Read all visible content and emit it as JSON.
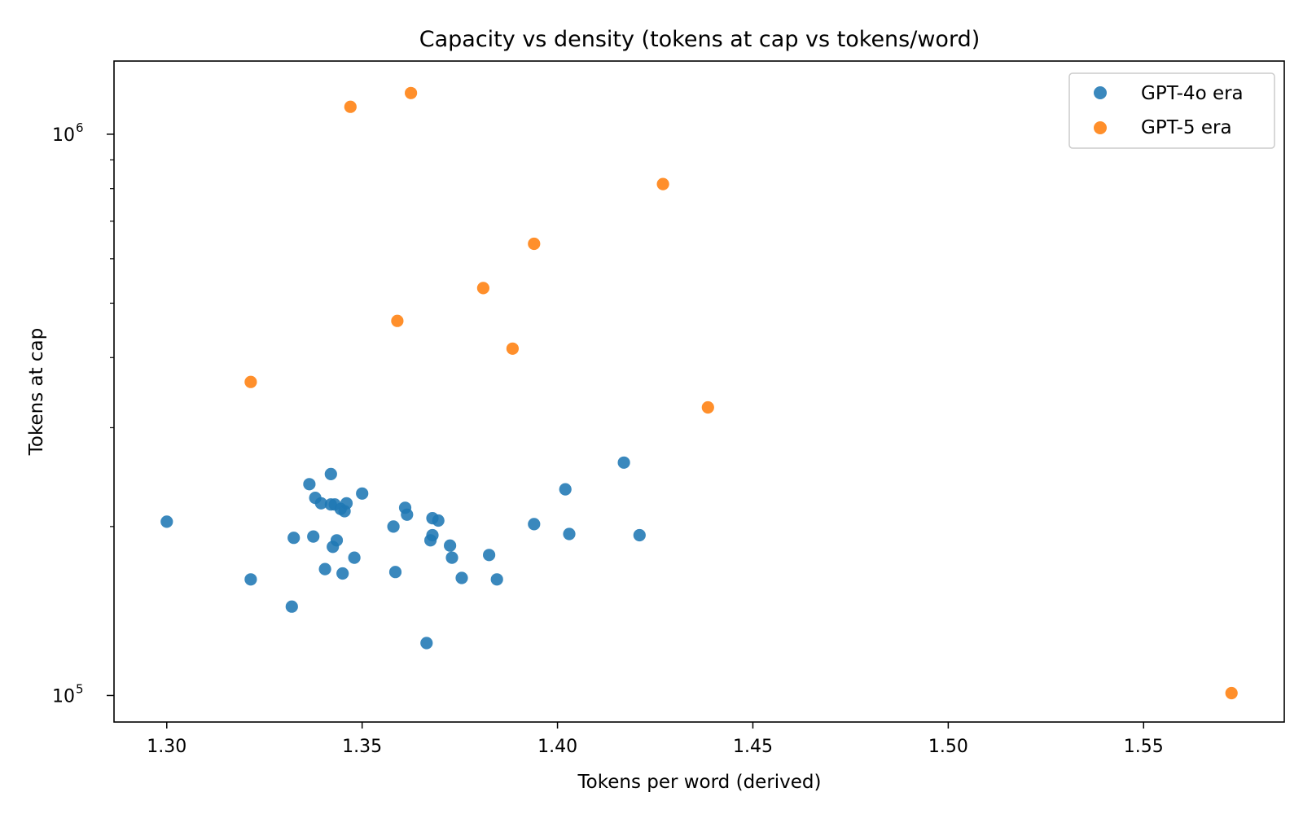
{
  "chart_data": {
    "type": "scatter",
    "title": "Capacity vs density (tokens at cap vs tokens/word)",
    "xlabel": "Tokens per word (derived)",
    "ylabel": "Tokens at cap",
    "xscale": "linear",
    "yscale": "log",
    "xlim": [
      1.2865,
      1.586
    ],
    "ylim": [
      89700,
      1350000
    ],
    "xticks": [
      1.3,
      1.35,
      1.4,
      1.45,
      1.5,
      1.55
    ],
    "xtick_labels": [
      "1.30",
      "1.35",
      "1.40",
      "1.45",
      "1.50",
      "1.55"
    ],
    "yticks_major": [
      {
        "value": 100000,
        "base": "10",
        "exp": "5"
      },
      {
        "value": 1000000,
        "base": "10",
        "exp": "6"
      }
    ],
    "yticks_minor": [
      200000,
      300000,
      400000,
      500000,
      600000,
      700000,
      800000,
      900000
    ],
    "grid": false,
    "legend_position": "upper right",
    "series": [
      {
        "name": "GPT-4o era",
        "color": "#1f77b4",
        "points": [
          {
            "x": 1.3,
            "y": 204000
          },
          {
            "x": 1.3215,
            "y": 161000
          },
          {
            "x": 1.332,
            "y": 144000
          },
          {
            "x": 1.3325,
            "y": 191000
          },
          {
            "x": 1.3365,
            "y": 238000
          },
          {
            "x": 1.3375,
            "y": 192000
          },
          {
            "x": 1.338,
            "y": 225000
          },
          {
            "x": 1.3395,
            "y": 220000
          },
          {
            "x": 1.3405,
            "y": 168000
          },
          {
            "x": 1.342,
            "y": 248000
          },
          {
            "x": 1.342,
            "y": 219000
          },
          {
            "x": 1.3425,
            "y": 184000
          },
          {
            "x": 1.343,
            "y": 219000
          },
          {
            "x": 1.3435,
            "y": 189000
          },
          {
            "x": 1.3445,
            "y": 215000
          },
          {
            "x": 1.345,
            "y": 165000
          },
          {
            "x": 1.3455,
            "y": 213000
          },
          {
            "x": 1.346,
            "y": 220000
          },
          {
            "x": 1.348,
            "y": 176000
          },
          {
            "x": 1.35,
            "y": 229000
          },
          {
            "x": 1.358,
            "y": 200000
          },
          {
            "x": 1.3585,
            "y": 166000
          },
          {
            "x": 1.361,
            "y": 216000
          },
          {
            "x": 1.3615,
            "y": 210000
          },
          {
            "x": 1.3665,
            "y": 124000
          },
          {
            "x": 1.3675,
            "y": 189000
          },
          {
            "x": 1.368,
            "y": 207000
          },
          {
            "x": 1.368,
            "y": 193000
          },
          {
            "x": 1.3695,
            "y": 205000
          },
          {
            "x": 1.3725,
            "y": 185000
          },
          {
            "x": 1.373,
            "y": 176000
          },
          {
            "x": 1.3755,
            "y": 162000
          },
          {
            "x": 1.3825,
            "y": 178000
          },
          {
            "x": 1.3845,
            "y": 161000
          },
          {
            "x": 1.394,
            "y": 202000
          },
          {
            "x": 1.402,
            "y": 233000
          },
          {
            "x": 1.403,
            "y": 194000
          },
          {
            "x": 1.417,
            "y": 260000
          },
          {
            "x": 1.421,
            "y": 193000
          }
        ]
      },
      {
        "name": "GPT-5 era",
        "color": "#ff7f0e",
        "points": [
          {
            "x": 1.3215,
            "y": 362000
          },
          {
            "x": 1.347,
            "y": 1119000
          },
          {
            "x": 1.359,
            "y": 465000
          },
          {
            "x": 1.3625,
            "y": 1184000
          },
          {
            "x": 1.381,
            "y": 532000
          },
          {
            "x": 1.3885,
            "y": 415000
          },
          {
            "x": 1.394,
            "y": 638000
          },
          {
            "x": 1.427,
            "y": 815000
          },
          {
            "x": 1.4385,
            "y": 326000
          },
          {
            "x": 1.5725,
            "y": 101000
          }
        ]
      }
    ]
  }
}
